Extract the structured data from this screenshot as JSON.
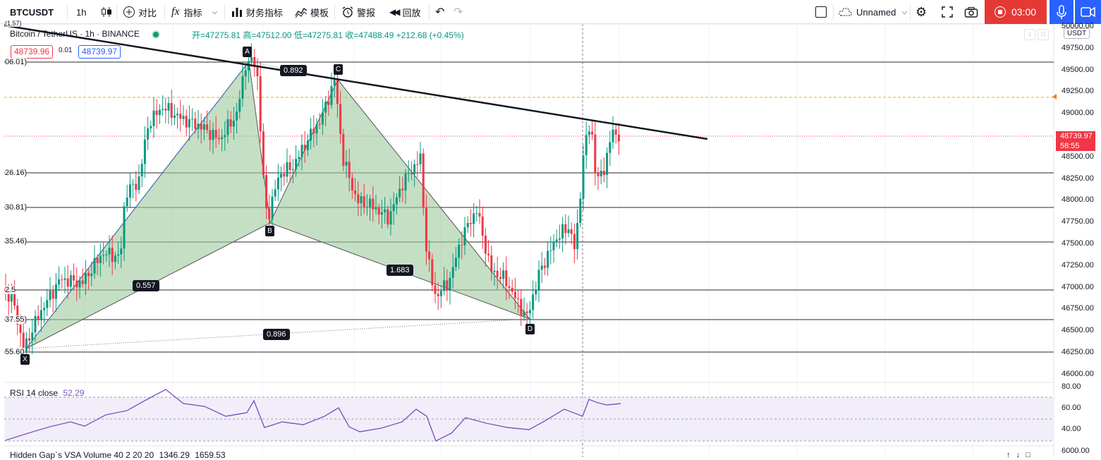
{
  "toolbar": {
    "symbol": "BTCUSDT",
    "interval": "1h",
    "compare": "对比",
    "indicators": "指标",
    "financials": "财务指标",
    "templates": "模板",
    "alerts": "警报",
    "replay": "回放",
    "layout_name": "Unnamed",
    "recording_time": "03:00"
  },
  "legend": {
    "title": "Bitcoin / TetherUS · 1h · BINANCE",
    "open": "开=47275.81",
    "high": "高=47512.00",
    "low": "低=47275.81",
    "close": "收=47488.49",
    "change": "+212.68 (+0.45%)",
    "sell_price": "48739.96",
    "spread": "0.01",
    "buy_price": "48739.97"
  },
  "price_axis": {
    "currency": "USDT",
    "ticks": [
      "50000.00",
      "49750.00",
      "49500.00",
      "49250.00",
      "49000.00",
      "48750.00",
      "48500.00",
      "48250.00",
      "48000.00",
      "47750.00",
      "47500.00",
      "47250.00",
      "47000.00",
      "46750.00",
      "46500.00",
      "46250.00",
      "46000.00"
    ],
    "last_price": "48739.97",
    "countdown": "58:55"
  },
  "fib_levels": [
    "(1.57)",
    "06.01)",
    "26.16)",
    "30.81)",
    "35.46)",
    "2.5",
    "37.55)",
    "55.60"
  ],
  "harmonic": {
    "points": [
      "A",
      "B",
      "C",
      "D",
      "X"
    ],
    "ratios": [
      "0.892",
      "1.683",
      "0.557",
      "0.896"
    ]
  },
  "rsi": {
    "label": "RSI 14 close",
    "value": "52.29",
    "ticks": [
      "80.00",
      "60.00",
      "40.00"
    ]
  },
  "volume": {
    "label": "Hidden Gap`s VSA Volume 40 2 20 20",
    "v1": "1346.29",
    "v2": "1659.53",
    "tick": "6000.00"
  },
  "colors": {
    "up": "#089981",
    "down": "#f23645",
    "harmonic_fill": "#9fc99c",
    "rsi_line": "#7e57c2",
    "rsi_band": "#ede7f6",
    "record": "#e53935",
    "accent": "#2962ff"
  }
}
